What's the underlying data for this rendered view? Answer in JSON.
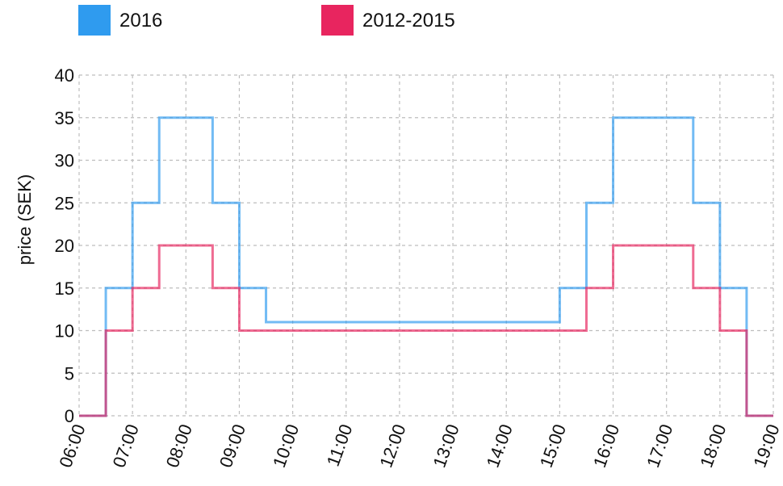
{
  "chart_data": {
    "type": "line",
    "step": true,
    "title": "",
    "xlabel": "",
    "ylabel": "price (SEK)",
    "ylim": [
      0,
      40
    ],
    "yticks": [
      0,
      5,
      10,
      15,
      20,
      25,
      30,
      35,
      40
    ],
    "xlim": [
      "06:00",
      "19:00"
    ],
    "xticks": [
      "06:00",
      "07:00",
      "08:00",
      "09:00",
      "10:00",
      "11:00",
      "12:00",
      "13:00",
      "14:00",
      "15:00",
      "16:00",
      "17:00",
      "18:00",
      "19:00"
    ],
    "grid": true,
    "legend_position": "top-left",
    "series": [
      {
        "name": "2016",
        "color": "#2f9bef",
        "x": [
          "06:00",
          "06:30",
          "07:00",
          "07:30",
          "08:00",
          "08:30",
          "09:00",
          "09:30",
          "10:00",
          "11:00",
          "12:00",
          "13:00",
          "14:00",
          "15:00",
          "15:30",
          "16:00",
          "16:30",
          "17:00",
          "17:30",
          "18:00",
          "18:30",
          "19:00"
        ],
        "values": [
          0,
          15,
          25,
          35,
          35,
          25,
          15,
          11,
          11,
          11,
          11,
          11,
          11,
          15,
          25,
          35,
          35,
          35,
          25,
          15,
          0,
          0
        ]
      },
      {
        "name": "2012-2015",
        "color": "#e8255f",
        "x": [
          "06:00",
          "06:30",
          "07:00",
          "07:30",
          "08:00",
          "08:30",
          "09:00",
          "10:00",
          "11:00",
          "12:00",
          "13:00",
          "14:00",
          "15:00",
          "15:30",
          "16:00",
          "16:30",
          "17:00",
          "17:30",
          "18:00",
          "18:30",
          "19:00"
        ],
        "values": [
          0,
          10,
          15,
          20,
          20,
          15,
          10,
          10,
          10,
          10,
          10,
          10,
          10,
          15,
          20,
          20,
          20,
          15,
          10,
          0,
          0
        ]
      }
    ]
  }
}
